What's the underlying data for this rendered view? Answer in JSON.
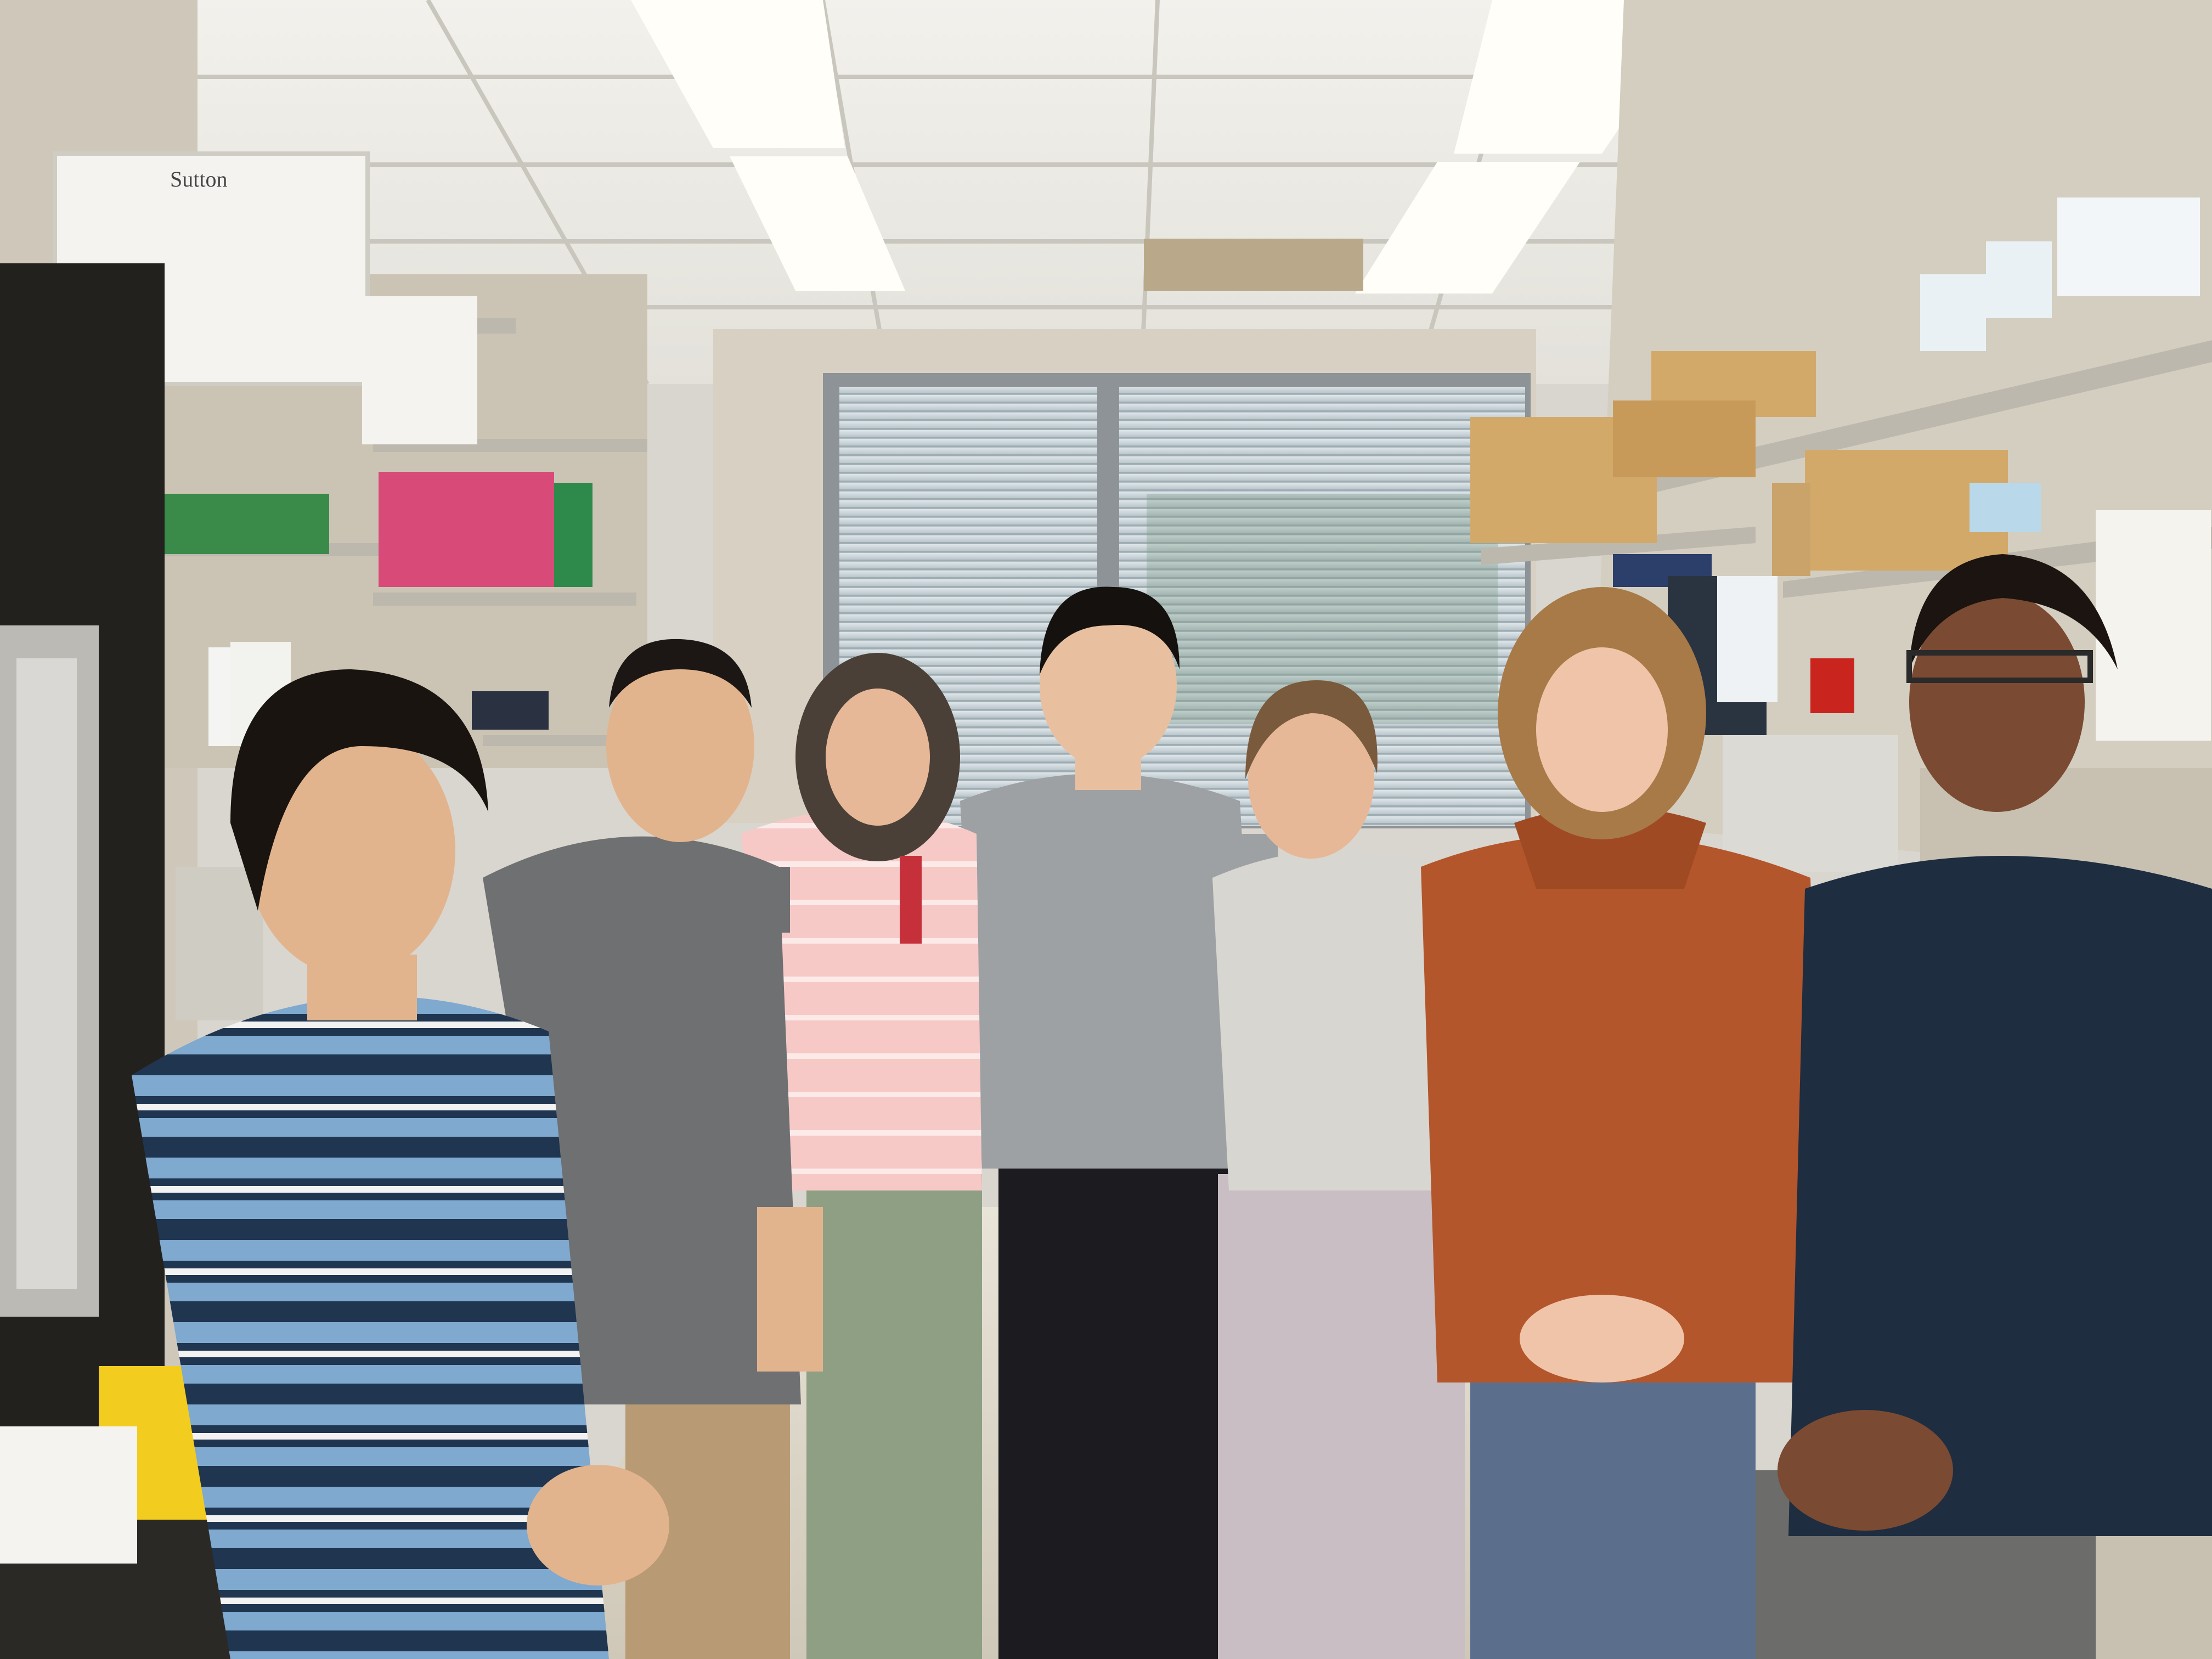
{
  "scene": {
    "palette": {
      "ceiling": "#ecebe6",
      "ceiling_grid": "#c9c6bd",
      "wall": "#d8d1c3",
      "window_blinds": "#c7d0d4",
      "shelf_metal": "#bdb8ad",
      "floor": "#e7e2d6",
      "cardboard": "#d3a96a",
      "light": "#fffdf4"
    },
    "labels": {
      "bin_label": "Sutton"
    },
    "people": [
      {
        "id": "person-1",
        "shirt": "#1f3550",
        "stripe": "#8fb6d8",
        "skin": "#e2b48e",
        "hair": "#1a1410",
        "pants": "#2b2f36"
      },
      {
        "id": "person-2",
        "shirt": "#6f7072",
        "skin": "#e2b48e",
        "hair": "#1c1714",
        "pants": "#b89a74"
      },
      {
        "id": "person-3",
        "shirt": "#f5c6c4",
        "stripe": "#ffffff",
        "skin": "#e6b898",
        "hair": "#4a4038",
        "pants": "#8e9f84"
      },
      {
        "id": "person-4",
        "shirt": "#9ea1a4",
        "skin": "#e8c0a0",
        "hair": "#15110e",
        "pants": "#1c1c20"
      },
      {
        "id": "person-5",
        "shirt": "#d8d6d0",
        "skin": "#e6b898",
        "hair": "#7a5a3c",
        "pants": "#c9bec4"
      },
      {
        "id": "person-6",
        "shirt": "#b3562c",
        "skin": "#f0c4a8",
        "hair": "#a87a48",
        "pants": "#5b6f8c"
      },
      {
        "id": "person-7",
        "shirt": "#1e2d40",
        "skin": "#7a4a32",
        "hair": "#1b1410",
        "pants": "#6c6c6a"
      }
    ]
  }
}
